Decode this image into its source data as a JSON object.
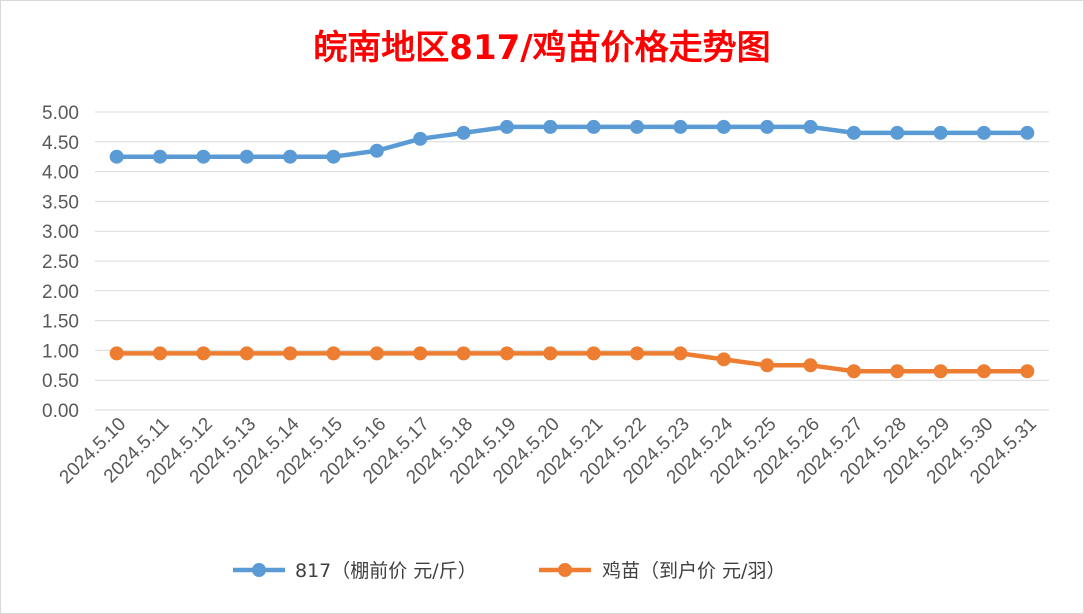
{
  "chart_data": {
    "type": "line",
    "title": "皖南地区817/鸡苗价格走势图",
    "x": [
      "2024.5.10",
      "2024.5.11",
      "2024.5.12",
      "2024.5.13",
      "2024.5.14",
      "2024.5.15",
      "2024.5.16",
      "2024.5.17",
      "2024.5.18",
      "2024.5.19",
      "2024.5.20",
      "2024.5.21",
      "2024.5.22",
      "2024.5.23",
      "2024.5.24",
      "2024.5.25",
      "2024.5.26",
      "2024.5.27",
      "2024.5.28",
      "2024.5.29",
      "2024.5.30",
      "2024.5.31"
    ],
    "y_ticks": [
      "0.00",
      "0.50",
      "1.00",
      "1.50",
      "2.00",
      "2.50",
      "3.00",
      "3.50",
      "4.00",
      "4.50",
      "5.00"
    ],
    "ylim": [
      0,
      5
    ],
    "grid": true,
    "legend_position": "bottom",
    "series": [
      {
        "name": "817（棚前价 元/斤）",
        "color": "#5b9bd5",
        "values": [
          4.25,
          4.25,
          4.25,
          4.25,
          4.25,
          4.25,
          4.35,
          4.55,
          4.65,
          4.75,
          4.75,
          4.75,
          4.75,
          4.75,
          4.75,
          4.75,
          4.75,
          4.65,
          4.65,
          4.65,
          4.65,
          4.65
        ]
      },
      {
        "name": "鸡苗（到户价 元/羽）",
        "color": "#ed7d31",
        "values": [
          0.95,
          0.95,
          0.95,
          0.95,
          0.95,
          0.95,
          0.95,
          0.95,
          0.95,
          0.95,
          0.95,
          0.95,
          0.95,
          0.95,
          0.85,
          0.75,
          0.75,
          0.65,
          0.65,
          0.65,
          0.65,
          0.65
        ]
      }
    ]
  }
}
